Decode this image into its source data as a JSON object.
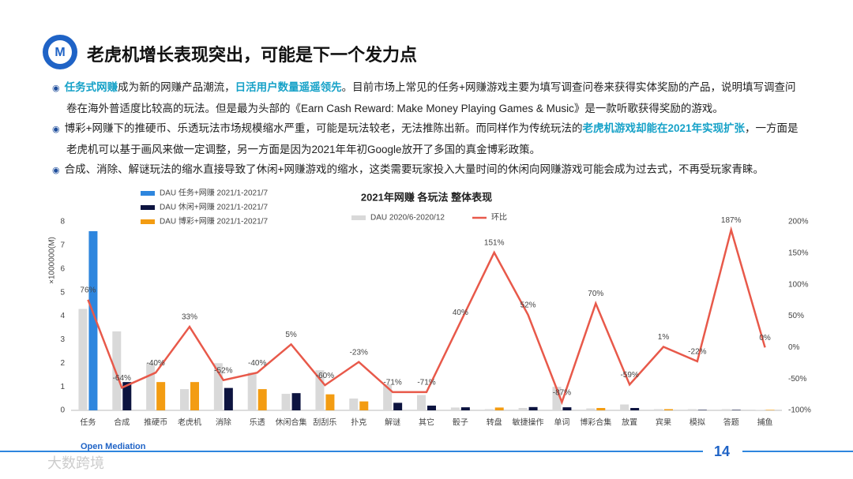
{
  "header": {
    "title": "老虎机增长表现突出，可能是下一个发力点"
  },
  "bullets": [
    {
      "segments": [
        {
          "text": "任务式网赚",
          "em": true
        },
        {
          "text": "成为新的网赚产品潮流，",
          "em": false
        },
        {
          "text": "日活用户数量遥遥领先",
          "em": true
        },
        {
          "text": "。目前市场上常见的任务+网赚游戏主要为填写调查问卷来获得实体奖励的产品，说明填写调查问卷在海外普适度比较高的玩法。但是最为头部的《Earn Cash Reward: Make Money Playing Games & Music》是一款听歌获得奖励的游戏。",
          "em": false
        }
      ]
    },
    {
      "segments": [
        {
          "text": "博彩+网赚下的推硬币、乐透玩法市场规模缩水严重，可能是玩法较老，无法推陈出新。而同样作为传统玩法的",
          "em": false
        },
        {
          "text": "老虎机游戏却能在2021年实现扩张",
          "em": true
        },
        {
          "text": "，一方面是老虎机可以基于画风来做一定调整，另一方面是因为2021年年初Google放开了多国的真金博彩政策。",
          "em": false
        }
      ]
    },
    {
      "segments": [
        {
          "text": "合成、消除、解谜玩法的缩水直接导致了休闲+网赚游戏的缩水，这类需要玩家投入大量时间的休闲向网赚游戏可能会成为过去式，不再受玩家青睐。",
          "em": false
        }
      ]
    }
  ],
  "footer": {
    "logo": "Open Mediation",
    "page": "14",
    "watermark": "大数跨境"
  },
  "chart_data": {
    "type": "bar",
    "title": "2021年网赚 各玩法 整体表现",
    "ylabel": "×1000000(M)",
    "categories": [
      "任务",
      "合成",
      "推硬币",
      "老虎机",
      "消除",
      "乐透",
      "休闲合集",
      "刮刮乐",
      "扑克",
      "解谜",
      "其它",
      "骰子",
      "转盘",
      "敏捷操作",
      "单词",
      "博彩合集",
      "放置",
      "宾果",
      "模拟",
      "答题",
      "捕鱼"
    ],
    "ylim": [
      0,
      8
    ],
    "yticks": [
      0,
      1,
      2,
      3,
      4,
      5,
      6,
      7,
      8
    ],
    "y2lim": [
      -100,
      200
    ],
    "y2ticks": [
      {
        "value": -100,
        "label": "-100%"
      },
      {
        "value": -50,
        "label": "-50%"
      },
      {
        "value": 0,
        "label": "0%"
      },
      {
        "value": 50,
        "label": "50%"
      },
      {
        "value": 100,
        "label": "100%"
      },
      {
        "value": 150,
        "label": "150%"
      },
      {
        "value": 200,
        "label": "200%"
      }
    ],
    "series": [
      {
        "name": "DAU 2020/6-2020/12",
        "color": "#d9d9d9",
        "values": [
          4.3,
          3.35,
          2.0,
          0.9,
          2.0,
          1.6,
          0.7,
          1.7,
          0.5,
          1.1,
          0.65,
          0.12,
          0.05,
          0.1,
          1.0,
          0.08,
          0.25,
          0.05,
          0.05,
          0.05,
          0.02
        ]
      },
      {
        "name": "DAU 任务+网赚 2021/1-2021/7",
        "color": "#2e86de",
        "values": [
          7.6,
          null,
          null,
          null,
          null,
          null,
          null,
          null,
          null,
          null,
          null,
          null,
          null,
          null,
          null,
          null,
          null,
          null,
          null,
          null,
          null
        ]
      },
      {
        "name": "DAU 休闲+网赚 2021/1-2021/7",
        "color": "#0d1440",
        "values": [
          null,
          1.2,
          null,
          null,
          0.95,
          null,
          0.73,
          null,
          null,
          0.32,
          0.2,
          0.13,
          null,
          0.14,
          0.13,
          null,
          0.1,
          null,
          0.02,
          0.02,
          null
        ]
      },
      {
        "name": "DAU 博彩+网赚 2021/1-2021/7",
        "color": "#f39c12",
        "values": [
          null,
          null,
          1.2,
          1.2,
          null,
          0.9,
          null,
          0.68,
          0.38,
          null,
          null,
          null,
          0.12,
          null,
          null,
          0.1,
          null,
          0.05,
          null,
          null,
          0.02
        ]
      },
      {
        "name": "环比",
        "color": "#e8594a",
        "type": "line",
        "axis": "y2",
        "values": [
          76,
          -64,
          -40,
          33,
          -52,
          -40,
          5,
          -60,
          -23,
          -71,
          -71,
          40,
          151,
          52,
          -87,
          70,
          -59,
          1,
          -22,
          187,
          0
        ],
        "value_labels": [
          "76%",
          "-64%",
          "-40%",
          "33%",
          "-52%",
          "-40%",
          "5%",
          "-60%",
          "-23%",
          "-71%",
          "-71%",
          "40%",
          "151%",
          "52%",
          "-87%",
          "70%",
          "-59%",
          "1%",
          "-22%",
          "187%",
          "0%"
        ]
      }
    ]
  }
}
